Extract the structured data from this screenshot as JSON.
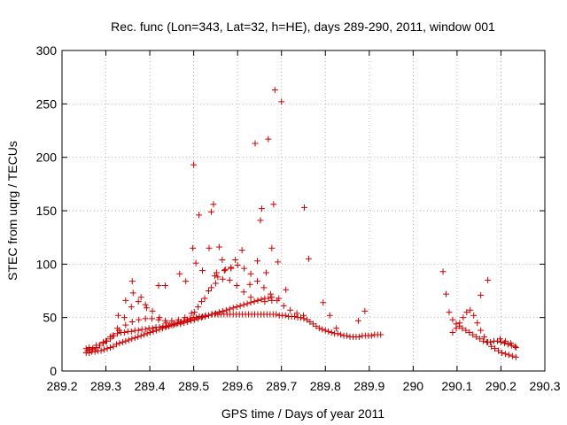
{
  "chart_data": {
    "type": "scatter",
    "title": "Rec. func (Lon=343, Lat=32, h=HE), days 289-290, 2011, window 001",
    "xlabel": "GPS time / Days of year 2011",
    "ylabel": "STEC from uqrg / TECUs",
    "xlim": [
      289.2,
      290.3
    ],
    "ylim": [
      0,
      300
    ],
    "xticks": [
      289.2,
      289.3,
      289.4,
      289.5,
      289.6,
      289.7,
      289.8,
      289.9,
      290,
      290.1,
      290.2,
      290.3
    ],
    "xtick_labels": [
      "289.2",
      "289.3",
      "289.4",
      "289.5",
      "289.6",
      "289.7",
      "289.8",
      "289.9",
      "290",
      "290.1",
      "290.2",
      "290.3"
    ],
    "yticks": [
      0,
      50,
      100,
      150,
      200,
      250,
      300
    ],
    "ytick_labels": [
      "0",
      "50",
      "100",
      "150",
      "200",
      "250",
      "300"
    ],
    "grid": true,
    "marker": "+",
    "color": "#cc0000",
    "series": [
      {
        "x": [
          289.255,
          289.262,
          289.268,
          289.275,
          289.282,
          289.289,
          289.296,
          289.303,
          289.31,
          289.317,
          289.324,
          289.331,
          289.338,
          289.345,
          289.352,
          289.359,
          289.366,
          289.373,
          289.38,
          289.387,
          289.394,
          289.401,
          289.408,
          289.415,
          289.422,
          289.429,
          289.436,
          289.443,
          289.45,
          289.457,
          289.464,
          289.471,
          289.478,
          289.485,
          289.492,
          289.499,
          289.506,
          289.513,
          289.52,
          289.527,
          289.534,
          289.541,
          289.548,
          289.555,
          289.562,
          289.569,
          289.576,
          289.583,
          289.59,
          289.597,
          289.604,
          289.611,
          289.618,
          289.625,
          289.632,
          289.639,
          289.646,
          289.653,
          289.66,
          289.667,
          289.674,
          289.681,
          289.688,
          289.695,
          289.702,
          289.709,
          289.716,
          289.723,
          289.73,
          289.737,
          289.744,
          289.751,
          289.758,
          289.765,
          289.772,
          289.779,
          289.786,
          289.793,
          289.8,
          289.807,
          289.814,
          289.821,
          289.828,
          289.835,
          289.842,
          289.849,
          289.856,
          289.863,
          289.87,
          289.877,
          289.884,
          289.891,
          289.898,
          289.905,
          289.912,
          289.919,
          289.926
        ],
        "y": [
          17,
          17,
          18,
          18,
          19,
          19,
          20,
          21,
          22,
          23,
          25,
          26,
          27,
          28,
          29,
          30,
          31,
          32,
          33,
          34,
          35,
          36,
          37,
          38,
          39,
          40,
          41,
          42,
          43,
          44,
          45,
          46,
          47,
          48,
          49,
          50,
          50,
          51,
          51,
          52,
          52,
          53,
          53,
          53,
          53,
          53,
          53,
          53,
          53,
          53,
          53,
          53,
          53,
          53,
          53,
          53,
          53,
          53,
          53,
          53,
          53,
          53,
          53,
          52,
          52,
          52,
          51,
          51,
          51,
          50,
          50,
          49,
          48,
          46,
          44,
          42,
          40,
          39,
          38,
          37,
          36,
          35,
          35,
          34,
          33,
          33,
          32,
          32,
          32,
          32,
          33,
          33,
          33,
          33,
          34,
          34,
          34
        ]
      },
      {
        "x": [
          289.255,
          289.262,
          289.27,
          289.278,
          289.286,
          289.294,
          289.302,
          289.31,
          289.318,
          289.326,
          289.334,
          289.342,
          289.35,
          289.358,
          289.366,
          289.374,
          289.382,
          289.39,
          289.398,
          289.406,
          289.414,
          289.422,
          289.43,
          289.438,
          289.446,
          289.454,
          289.462,
          289.47,
          289.478,
          289.486,
          289.494,
          289.502,
          289.51,
          289.518,
          289.526,
          289.534,
          289.542,
          289.55,
          289.558,
          289.566,
          289.574,
          289.582,
          289.59,
          289.598,
          289.606,
          289.614,
          289.622,
          289.63,
          289.638,
          289.646,
          289.654,
          289.662,
          289.67,
          289.678
        ],
        "y": [
          21,
          20,
          20,
          22,
          24,
          26,
          28,
          30,
          33,
          35,
          36,
          36,
          37,
          37,
          38,
          38,
          39,
          39,
          40,
          40,
          41,
          41,
          42,
          42,
          43,
          44,
          44,
          45,
          45,
          46,
          47,
          48,
          49,
          50,
          51,
          52,
          53,
          54,
          55,
          56,
          57,
          58,
          59,
          60,
          61,
          62,
          63,
          64,
          65,
          66,
          67,
          68,
          68,
          69
        ]
      },
      {
        "x": [
          289.258,
          289.27,
          289.285,
          289.3,
          289.315,
          289.33,
          289.345,
          289.36,
          289.375,
          289.39,
          289.405,
          289.42,
          289.435,
          289.45,
          289.465,
          289.48,
          289.495,
          289.51,
          289.525,
          289.54,
          289.555,
          289.57,
          289.585,
          289.6,
          289.615,
          289.63,
          289.645,
          289.66,
          289.675,
          289.69,
          289.705,
          289.72,
          289.735,
          289.75
        ],
        "y": [
          19,
          21,
          24,
          28,
          33,
          38,
          43,
          46,
          48,
          49,
          49,
          48,
          47,
          47,
          48,
          50,
          54,
          60,
          68,
          78,
          88,
          94,
          97,
          99,
          96,
          91,
          84,
          78,
          72,
          66,
          61,
          57,
          54,
          52
        ]
      },
      {
        "x": [
          289.262,
          289.278,
          289.294,
          289.31,
          289.326,
          289.342,
          289.358,
          289.374,
          289.39,
          289.406,
          289.422,
          289.438,
          289.454,
          289.47,
          289.486,
          289.502,
          289.518,
          289.534,
          289.55,
          289.566,
          289.582,
          289.598,
          289.614,
          289.63,
          289.646,
          289.662,
          289.678,
          289.694
        ],
        "y": [
          22,
          24,
          27,
          32,
          40,
          50,
          60,
          65,
          62,
          56,
          50,
          45,
          43,
          44,
          48,
          55,
          65,
          75,
          82,
          86,
          85,
          80,
          74,
          69,
          66,
          65,
          66,
          68
        ]
      },
      {
        "x": [
          289.328,
          289.345,
          289.36,
          289.362,
          289.38,
          289.393,
          289.42,
          289.435,
          289.468,
          289.482,
          289.498,
          289.5,
          289.505,
          289.512,
          289.52,
          289.535,
          289.54,
          289.545,
          289.548,
          289.552,
          289.558,
          289.565,
          289.572,
          289.585,
          289.595,
          289.61,
          289.628,
          289.64,
          289.645,
          289.652,
          289.655,
          289.665,
          289.67,
          289.678,
          289.682,
          289.685,
          289.692,
          289.7,
          289.71,
          289.752,
          289.762,
          289.795,
          289.81,
          289.825,
          289.875,
          289.89
        ],
        "y": [
          52,
          66,
          84,
          73,
          69,
          59,
          80,
          80,
          91,
          84,
          115,
          193,
          101,
          146,
          94,
          115,
          149,
          156,
          89,
          92,
          116,
          104,
          95,
          96,
          104,
          113,
          81,
          213,
          103,
          141,
          152,
          92,
          217,
          115,
          156,
          263,
          102,
          252,
          76,
          153,
          105,
          64,
          52,
          40,
          47,
          56
        ]
      },
      {
        "x": [
          290.068,
          290.075,
          290.082,
          290.09,
          290.098,
          290.105,
          290.112,
          290.12,
          290.128,
          290.136,
          290.144,
          290.152,
          290.16,
          290.168,
          290.176,
          290.184,
          290.192,
          290.2,
          290.208,
          290.216,
          290.224,
          290.232,
          290.09,
          290.098,
          290.106,
          290.114,
          290.122,
          290.13,
          290.138,
          290.146,
          290.154,
          290.162,
          290.17,
          290.178,
          290.186,
          290.194,
          290.202,
          290.21,
          290.218,
          290.226,
          290.234,
          290.154,
          290.17,
          290.198,
          290.21,
          290.222,
          290.234
        ],
        "y": [
          93,
          72,
          55,
          48,
          44,
          42,
          40,
          38,
          36,
          34,
          32,
          30,
          28,
          27,
          27,
          28,
          28,
          27,
          26,
          25,
          24,
          23,
          36,
          40,
          45,
          50,
          55,
          57,
          52,
          45,
          38,
          32,
          27,
          23,
          21,
          19,
          17,
          16,
          15,
          14,
          13,
          71,
          85,
          30,
          28,
          26,
          22
        ]
      }
    ]
  }
}
